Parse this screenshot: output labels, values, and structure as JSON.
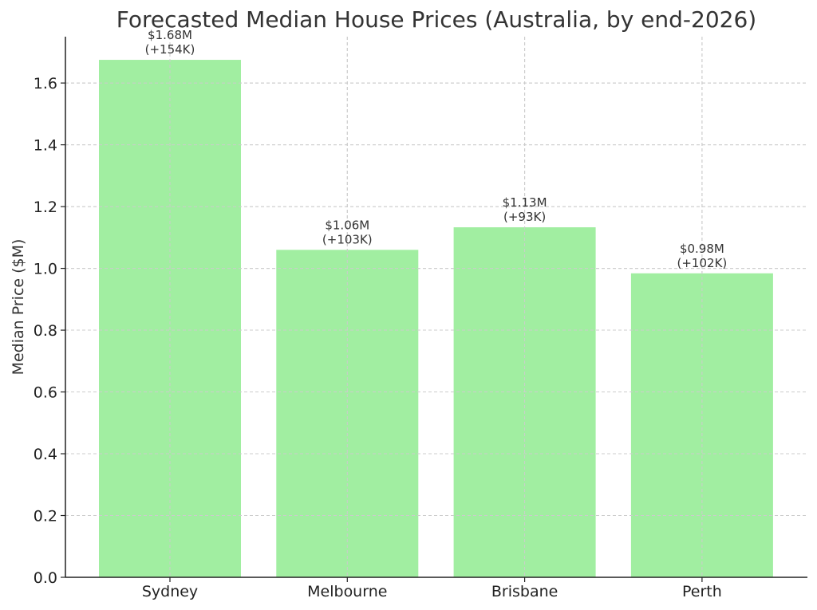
{
  "chart_data": {
    "type": "bar",
    "title": "Forecasted Median House Prices (Australia, by end-2026)",
    "xlabel": "",
    "ylabel": "Median Price ($M)",
    "categories": [
      "Sydney",
      "Melbourne",
      "Brisbane",
      "Perth"
    ],
    "values": [
      1.675,
      1.06,
      1.133,
      0.984
    ],
    "value_labels": [
      "$1.68M",
      "$1.06M",
      "$1.13M",
      "$0.98M"
    ],
    "change_labels": [
      "(+154K)",
      "(+103K)",
      "(+93K)",
      "(+102K)"
    ],
    "ylim": [
      0,
      1.75
    ],
    "yticks": [
      0.0,
      0.2,
      0.4,
      0.6,
      0.8,
      1.0,
      1.2,
      1.4,
      1.6
    ],
    "ytick_labels": [
      "0.0",
      "0.2",
      "0.4",
      "0.6",
      "0.8",
      "1.0",
      "1.2",
      "1.4",
      "1.6"
    ],
    "grid": true,
    "bar_color": "#a1eea1",
    "legend": "none"
  }
}
